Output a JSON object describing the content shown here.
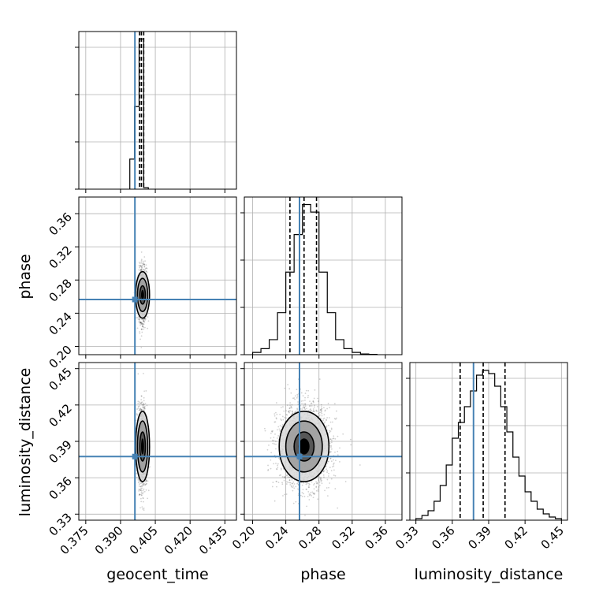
{
  "chart_data": {
    "type": "scatter",
    "plot_kind": "corner",
    "parameters": [
      "geocent_time",
      "phase",
      "luminosity_distance"
    ],
    "truths": {
      "geocent_time": 0.3962,
      "phase": 0.2565,
      "luminosity_distance": 0.3775
    },
    "colors": {
      "truth": "#4682b4",
      "ink": "#000000",
      "grid": "#b0b0b0"
    },
    "axes": {
      "geocent_time": {
        "range": [
          0.372,
          0.44
        ],
        "ticks": [
          0.375,
          0.39,
          0.405,
          0.42,
          0.435
        ],
        "tick_labels": [
          "0.375",
          "0.390",
          "0.405",
          "0.420",
          "0.435"
        ]
      },
      "phase": {
        "range": [
          0.19,
          0.38
        ],
        "ticks": [
          0.2,
          0.24,
          0.28,
          0.32,
          0.36
        ],
        "tick_labels": [
          "0.20",
          "0.24",
          "0.28",
          "0.32",
          "0.36"
        ]
      },
      "luminosity_distance": {
        "range": [
          0.325,
          0.455
        ],
        "ticks": [
          0.33,
          0.36,
          0.39,
          0.42,
          0.45
        ],
        "tick_labels": [
          "0.33",
          "0.36",
          "0.39",
          "0.42",
          "0.45"
        ]
      }
    },
    "marginals": {
      "geocent_time": {
        "bin_edges": [
          0.394,
          0.396,
          0.398,
          0.4,
          0.402
        ],
        "counts": [
          0.2,
          0.55,
          1.0,
          0.01
        ],
        "quantiles": [
          0.3982,
          0.399,
          0.4
        ],
        "hist_ymax": 1.05
      },
      "phase": {
        "bin_edges": [
          0.2,
          0.21,
          0.22,
          0.23,
          0.24,
          0.25,
          0.26,
          0.27,
          0.28,
          0.29,
          0.3,
          0.31,
          0.32,
          0.33,
          0.34,
          0.35
        ],
        "counts": [
          0.015,
          0.04,
          0.1,
          0.28,
          0.55,
          0.8,
          1.0,
          0.95,
          0.55,
          0.28,
          0.1,
          0.04,
          0.015,
          0.005,
          0.002
        ],
        "quantiles": [
          0.245,
          0.262,
          0.277
        ],
        "hist_ymax": 1.05
      },
      "luminosity_distance": {
        "bin_edges": [
          0.33,
          0.335,
          0.34,
          0.345,
          0.35,
          0.355,
          0.36,
          0.365,
          0.37,
          0.375,
          0.38,
          0.385,
          0.39,
          0.395,
          0.4,
          0.405,
          0.41,
          0.415,
          0.42,
          0.425,
          0.43,
          0.435,
          0.44,
          0.445,
          0.45
        ],
        "counts": [
          0.01,
          0.03,
          0.06,
          0.12,
          0.22,
          0.35,
          0.52,
          0.62,
          0.72,
          0.82,
          0.92,
          0.95,
          0.93,
          0.85,
          0.72,
          0.56,
          0.4,
          0.28,
          0.18,
          0.12,
          0.07,
          0.04,
          0.02,
          0.01
        ],
        "quantiles": [
          0.3665,
          0.3855,
          0.4035
        ],
        "hist_ymax": 1.0
      }
    },
    "joint": {
      "phase|geocent_time": {
        "mean": [
          0.3995,
          0.262
        ],
        "sigma": [
          0.0009,
          0.015
        ],
        "n_points": 1400,
        "contour_levels": [
          {
            "rx": 0.0012,
            "ry": 0.011
          },
          {
            "rx": 0.0022,
            "ry": 0.02
          },
          {
            "rx": 0.003,
            "ry": 0.028
          }
        ]
      },
      "luminosity_distance|geocent_time": {
        "mean": [
          0.3995,
          0.3858
        ],
        "sigma": [
          0.0009,
          0.016
        ],
        "n_points": 1400,
        "contour_levels": [
          {
            "rx": 0.0012,
            "ry": 0.012
          },
          {
            "rx": 0.0022,
            "ry": 0.021
          },
          {
            "rx": 0.003,
            "ry": 0.029
          }
        ]
      },
      "luminosity_distance|phase": {
        "mean": [
          0.262,
          0.3858
        ],
        "sigma": [
          0.015,
          0.016
        ],
        "n_points": 2200,
        "contour_levels": [
          {
            "rx": 0.012,
            "ry": 0.012
          },
          {
            "rx": 0.022,
            "ry": 0.021
          },
          {
            "rx": 0.03,
            "ry": 0.029
          }
        ]
      }
    }
  }
}
